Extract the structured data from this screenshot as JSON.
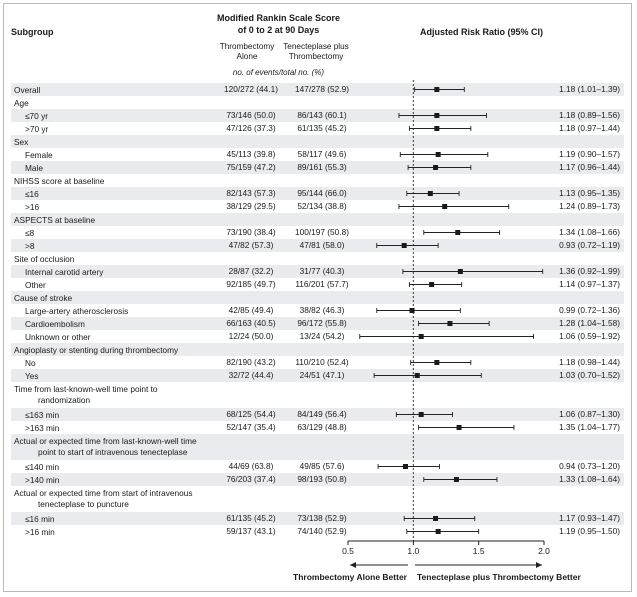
{
  "headers": {
    "subgroup": "Subgroup",
    "outcome_line1": "Modified Rankin Scale Score",
    "outcome_line2": "of 0 to 2 at 90 Days",
    "col1_line1": "Thrombectomy",
    "col1_line2": "Alone",
    "col2_line1": "Tenecteplase plus",
    "col2_line2": "Thrombectomy",
    "events_note": "no. of events/total no. (%)",
    "risk_ratio": "Adjusted Risk Ratio (95% CI)"
  },
  "rows": [
    {
      "label": "Overall",
      "indent": false,
      "col1": "120/272 (44.1)",
      "col2": "147/278 (52.9)",
      "rr_text": "1.18 (1.01–1.39)"
    },
    {
      "label": "Age",
      "indent": false
    },
    {
      "label": "≤70 yr",
      "indent": true,
      "col1": "73/146 (50.0)",
      "col2": "86/143 (60.1)",
      "rr_text": "1.18 (0.89–1.56)"
    },
    {
      "label": ">70 yr",
      "indent": true,
      "col1": "47/126 (37.3)",
      "col2": "61/135 (45.2)",
      "rr_text": "1.18 (0.97–1.44)"
    },
    {
      "label": "Sex",
      "indent": false
    },
    {
      "label": "Female",
      "indent": true,
      "col1": "45/113 (39.8)",
      "col2": "58/117 (49.6)",
      "rr_text": "1.19 (0.90–1.57)"
    },
    {
      "label": "Male",
      "indent": true,
      "col1": "75/159 (47.2)",
      "col2": "89/161 (55.3)",
      "rr_text": "1.17 (0.96–1.44)"
    },
    {
      "label": "NIHSS score at baseline",
      "indent": false
    },
    {
      "label": "≤16",
      "indent": true,
      "col1": "82/143 (57.3)",
      "col2": "95/144 (66.0)",
      "rr_text": "1.13 (0.95–1.35)"
    },
    {
      "label": ">16",
      "indent": true,
      "col1": "38/129 (29.5)",
      "col2": "52/134 (38.8)",
      "rr_text": "1.24 (0.89–1.73)"
    },
    {
      "label": "ASPECTS at baseline",
      "indent": false
    },
    {
      "label": "≤8",
      "indent": true,
      "col1": "73/190 (38.4)",
      "col2": "100/197 (50.8)",
      "rr_text": "1.34 (1.08–1.66)"
    },
    {
      "label": ">8",
      "indent": true,
      "col1": "47/82 (57.3)",
      "col2": "47/81 (58.0)",
      "rr_text": "0.93 (0.72–1.19)"
    },
    {
      "label": "Site of occlusion",
      "indent": false
    },
    {
      "label": "Internal carotid artery",
      "indent": true,
      "col1": "28/87 (32.2)",
      "col2": "31/77 (40.3)",
      "rr_text": "1.36 (0.92–1.99)"
    },
    {
      "label": "Other",
      "indent": true,
      "col1": "92/185 (49.7)",
      "col2": "116/201 (57.7)",
      "rr_text": "1.14 (0.97–1.37)"
    },
    {
      "label": "Cause of stroke",
      "indent": false
    },
    {
      "label": "Large-artery atherosclerosis",
      "indent": true,
      "col1": "42/85 (49.4)",
      "col2": "38/82 (46.3)",
      "rr_text": "0.99 (0.72–1.36)"
    },
    {
      "label": "Cardioembolism",
      "indent": true,
      "col1": "66/163 (40.5)",
      "col2": "96/172 (55.8)",
      "rr_text": "1.28 (1.04–1.58)"
    },
    {
      "label": "Unknown or other",
      "indent": true,
      "col1": "12/24 (50.0)",
      "col2": "13/24 (54.2)",
      "rr_text": "1.06 (0.59–1.92)"
    },
    {
      "label": "Angioplasty or stenting during thrombectomy",
      "indent": false
    },
    {
      "label": "No",
      "indent": true,
      "col1": "82/190 (43.2)",
      "col2": "110/210 (52.4)",
      "rr_text": "1.18 (0.98–1.44)"
    },
    {
      "label": "Yes",
      "indent": true,
      "col1": "32/72 (44.4)",
      "col2": "24/51 (47.1)",
      "rr_text": "1.03 (0.70–1.52)"
    },
    {
      "label": "Time from last-known-well time point to",
      "label2": "randomization",
      "indent": false
    },
    {
      "label": "≤163 min",
      "indent": true,
      "col1": "68/125 (54.4)",
      "col2": "84/149 (56.4)",
      "rr_text": "1.06 (0.87–1.30)"
    },
    {
      "label": ">163 min",
      "indent": true,
      "col1": "52/147 (35.4)",
      "col2": "63/129 (48.8)",
      "rr_text": "1.35 (1.04–1.77)"
    },
    {
      "label": "Actual or expected time from last-known-well time",
      "label2": "point to start of intravenous tenecteplase",
      "indent": false
    },
    {
      "label": "≤140 min",
      "indent": true,
      "col1": "44/69 (63.8)",
      "col2": "49/85 (57.6)",
      "rr_text": "0.94 (0.73–1.20)"
    },
    {
      "label": ">140 min",
      "indent": true,
      "col1": "76/203 (37.4)",
      "col2": "98/193 (50.8)",
      "rr_text": "1.33 (1.08–1.64)"
    },
    {
      "label": "Actual or expected time from start of intravenous",
      "label2": "tenecteplase to puncture",
      "indent": false
    },
    {
      "label": "≤16 min",
      "indent": true,
      "col1": "61/135 (45.2)",
      "col2": "73/138 (52.9)",
      "rr_text": "1.17 (0.93–1.47)"
    },
    {
      "label": ">16 min",
      "indent": true,
      "col1": "59/137 (43.1)",
      "col2": "74/140 (52.9)",
      "rr_text": "1.19 (0.95–1.50)"
    }
  ],
  "chart_data": {
    "type": "forest",
    "title": "Adjusted Risk Ratio (95% CI)",
    "x_ticks": [
      "0.5",
      "1.0",
      "1.5",
      "2.0"
    ],
    "xlim": [
      0.5,
      2.0
    ],
    "reference_line": 1.0,
    "favors_left": "Thrombectomy Alone Better",
    "favors_right": "Tenecteplase plus Thrombectomy Better",
    "points": [
      {
        "label": "Overall",
        "rr": 1.18,
        "lo": 1.01,
        "hi": 1.39
      },
      {
        "label": "≤70 yr",
        "rr": 1.18,
        "lo": 0.89,
        "hi": 1.56
      },
      {
        "label": ">70 yr",
        "rr": 1.18,
        "lo": 0.97,
        "hi": 1.44
      },
      {
        "label": "Female",
        "rr": 1.19,
        "lo": 0.9,
        "hi": 1.57
      },
      {
        "label": "Male",
        "rr": 1.17,
        "lo": 0.96,
        "hi": 1.44
      },
      {
        "label": "≤16",
        "rr": 1.13,
        "lo": 0.95,
        "hi": 1.35
      },
      {
        "label": ">16",
        "rr": 1.24,
        "lo": 0.89,
        "hi": 1.73
      },
      {
        "label": "≤8",
        "rr": 1.34,
        "lo": 1.08,
        "hi": 1.66
      },
      {
        "label": ">8",
        "rr": 0.93,
        "lo": 0.72,
        "hi": 1.19
      },
      {
        "label": "Internal carotid artery",
        "rr": 1.36,
        "lo": 0.92,
        "hi": 1.99
      },
      {
        "label": "Other",
        "rr": 1.14,
        "lo": 0.97,
        "hi": 1.37
      },
      {
        "label": "Large-artery atherosclerosis",
        "rr": 0.99,
        "lo": 0.72,
        "hi": 1.36
      },
      {
        "label": "Cardioembolism",
        "rr": 1.28,
        "lo": 1.04,
        "hi": 1.58
      },
      {
        "label": "Unknown or other",
        "rr": 1.06,
        "lo": 0.59,
        "hi": 1.92
      },
      {
        "label": "No",
        "rr": 1.18,
        "lo": 0.98,
        "hi": 1.44
      },
      {
        "label": "Yes",
        "rr": 1.03,
        "lo": 0.7,
        "hi": 1.52
      },
      {
        "label": "≤163 min",
        "rr": 1.06,
        "lo": 0.87,
        "hi": 1.3
      },
      {
        "label": ">163 min",
        "rr": 1.35,
        "lo": 1.04,
        "hi": 1.77
      },
      {
        "label": "≤140 min",
        "rr": 0.94,
        "lo": 0.73,
        "hi": 1.2
      },
      {
        "label": ">140 min",
        "rr": 1.33,
        "lo": 1.08,
        "hi": 1.64
      },
      {
        "label": "≤16 min",
        "rr": 1.17,
        "lo": 0.93,
        "hi": 1.47
      },
      {
        "label": ">16 min",
        "rr": 1.19,
        "lo": 0.95,
        "hi": 1.5
      }
    ]
  }
}
